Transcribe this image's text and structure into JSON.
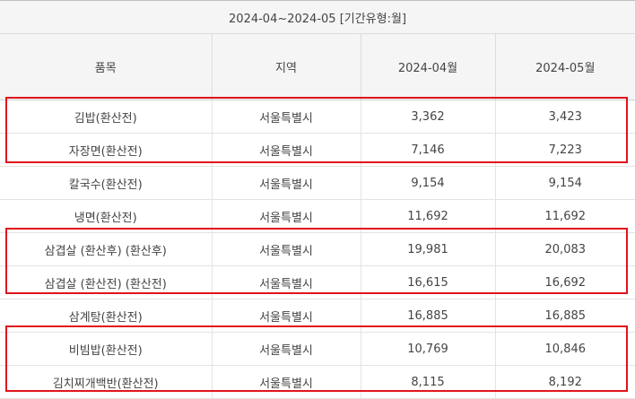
{
  "header": {
    "period": "2024-04~2024-05 [기간유형:월]",
    "columns": [
      "품목",
      "지역",
      "2024-04월",
      "2024-05월"
    ]
  },
  "rows": [
    {
      "item": "김밥(환산전)",
      "region": "서울특별시",
      "apr": "3,362",
      "may": "3,423"
    },
    {
      "item": "자장면(환산전)",
      "region": "서울특별시",
      "apr": "7,146",
      "may": "7,223"
    },
    {
      "item": "칼국수(환산전)",
      "region": "서울특별시",
      "apr": "9,154",
      "may": "9,154"
    },
    {
      "item": "냉면(환산전)",
      "region": "서울특별시",
      "apr": "11,692",
      "may": "11,692"
    },
    {
      "item": "삼겹살 (환산후) (환산후)",
      "region": "서울특별시",
      "apr": "19,981",
      "may": "20,083"
    },
    {
      "item": "삼겹살 (환산전) (환산전)",
      "region": "서울특별시",
      "apr": "16,615",
      "may": "16,692"
    },
    {
      "item": "삼계탕(환산전)",
      "region": "서울특별시",
      "apr": "16,885",
      "may": "16,885"
    },
    {
      "item": "비빔밥(환산전)",
      "region": "서울특별시",
      "apr": "10,769",
      "may": "10,846"
    },
    {
      "item": "김치찌개백반(환산전)",
      "region": "서울특별시",
      "apr": "8,115",
      "may": "8,192"
    }
  ],
  "highlight_color": "#e0141b"
}
